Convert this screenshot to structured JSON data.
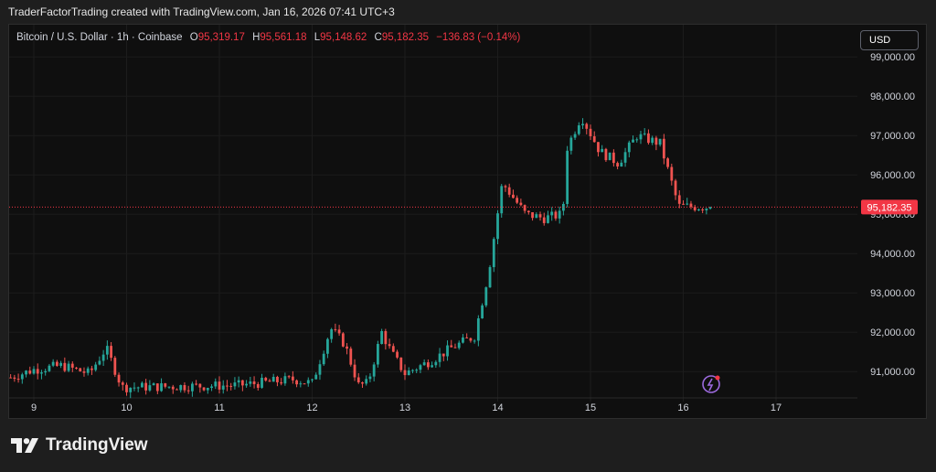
{
  "credit": "TraderFactorTrading created with TradingView.com, Jan 16, 2026 07:41 UTC+3",
  "legend": {
    "symbol": "Bitcoin / U.S. Dollar · 1h · Coinbase",
    "o_label": "O",
    "o": "95,319.17",
    "h_label": "H",
    "h": "95,561.18",
    "l_label": "L",
    "l": "95,148.62",
    "c_label": "C",
    "c": "95,182.35",
    "change": "−136.83 (−0.14%)"
  },
  "currency_button": "USD",
  "brand": "TradingView",
  "colors": {
    "up": "#26a69a",
    "down": "#ef5350",
    "bg": "#0f0f0f",
    "price_tag": "#f23645"
  },
  "chart_data": {
    "type": "candlestick",
    "title": "Bitcoin / U.S. Dollar · 1h · Coinbase",
    "x_ticks": [
      "9",
      "10",
      "11",
      "12",
      "13",
      "14",
      "15",
      "16",
      "17"
    ],
    "y_ticks": [
      "91,000.00",
      "92,000.00",
      "93,000.00",
      "94,000.00",
      "95,000.00",
      "96,000.00",
      "97,000.00",
      "98,000.00",
      "99,000.00"
    ],
    "ylim": [
      90400,
      99400
    ],
    "last_price": 95182.35,
    "last_price_label": "95,182.35",
    "closes_anchor_days": [
      8.75,
      9.0,
      9.3,
      9.6,
      9.78,
      9.95,
      10.5,
      11.2,
      11.8,
      12.0,
      12.2,
      12.35,
      12.5,
      12.6,
      12.75,
      12.85,
      13.0,
      13.3,
      13.5,
      13.75,
      13.9,
      14.05,
      14.3,
      14.5,
      14.7,
      14.75,
      14.9,
      15.1,
      15.3,
      15.5,
      15.75,
      15.95,
      16.3
    ],
    "closes_anchor_values": [
      90850,
      91050,
      91150,
      90950,
      91600,
      90600,
      90620,
      90650,
      90800,
      90700,
      92100,
      91700,
      90650,
      90700,
      92000,
      91500,
      90950,
      91300,
      91600,
      91900,
      93500,
      95800,
      95000,
      94900,
      95000,
      96700,
      97500,
      96600,
      96300,
      97000,
      96800,
      95200,
      95182
    ]
  }
}
